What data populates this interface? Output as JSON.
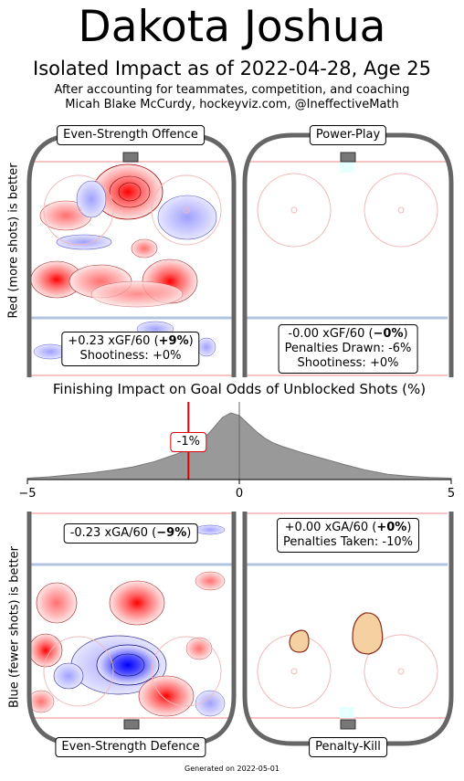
{
  "header": {
    "title": "Dakota Joshua",
    "subtitle": "Isolated Impact as of 2022-04-28, Age 25",
    "note_line1": "After accounting for teammates, competition, and coaching",
    "note_line2": "Micah Blake McCurdy, hockeyviz.com, @IneffectiveMath"
  },
  "labels": {
    "ylabel_top": "Red (more shots) is better",
    "ylabel_bottom": "Blue (fewer shots) is better",
    "footer": "Generated on 2022-05-01"
  },
  "panels": {
    "ev_offence": {
      "title": "Even-Strength Offence",
      "line1": "+0.23 xGF/60 (+9%)",
      "line2": "Shootiness: +0%"
    },
    "pp": {
      "title": "Power-Play",
      "line1": "-0.00 xGF/60 (−0%)",
      "line2": "Penalties Drawn: -6%",
      "line3": "Shootiness: +0%"
    },
    "ev_defence": {
      "title": "Even-Strength Defence",
      "line1": "-0.23 xGA/60 (−9%)"
    },
    "pk": {
      "title": "Penalty-Kill",
      "line1": "+0.00 xGA/60 (+0%)",
      "line2": "Penalties Taken: -10%"
    }
  },
  "colors": {
    "more_shots": "#ff0000",
    "fewer_shots": "#0000ff",
    "rink_border": "#666666",
    "density_fill": "#999999",
    "marker": "#dd0000",
    "pk_blob": "#f5d0a0"
  },
  "chart_data": {
    "type": "area",
    "title": "Finishing Impact on Goal Odds of Unblocked Shots (%)",
    "xlim": [
      -5,
      5
    ],
    "xticks": [
      "−5",
      "0",
      "5"
    ],
    "x": [
      -5,
      -4.5,
      -4,
      -3.5,
      -3,
      -2.5,
      -2,
      -1.5,
      -1.2,
      -1,
      -0.8,
      -0.6,
      -0.4,
      -0.2,
      0,
      0.2,
      0.4,
      0.6,
      0.8,
      1,
      1.5,
      2,
      2.5,
      3,
      3.5,
      4,
      4.5,
      5
    ],
    "density": [
      0.02,
      0.04,
      0.07,
      0.1,
      0.14,
      0.19,
      0.27,
      0.38,
      0.45,
      0.52,
      0.64,
      0.78,
      0.93,
      1.0,
      0.96,
      0.84,
      0.72,
      0.62,
      0.55,
      0.5,
      0.4,
      0.31,
      0.22,
      0.14,
      0.08,
      0.05,
      0.03,
      0.02
    ],
    "marker_value": -1.2,
    "marker_label": "-1%"
  }
}
